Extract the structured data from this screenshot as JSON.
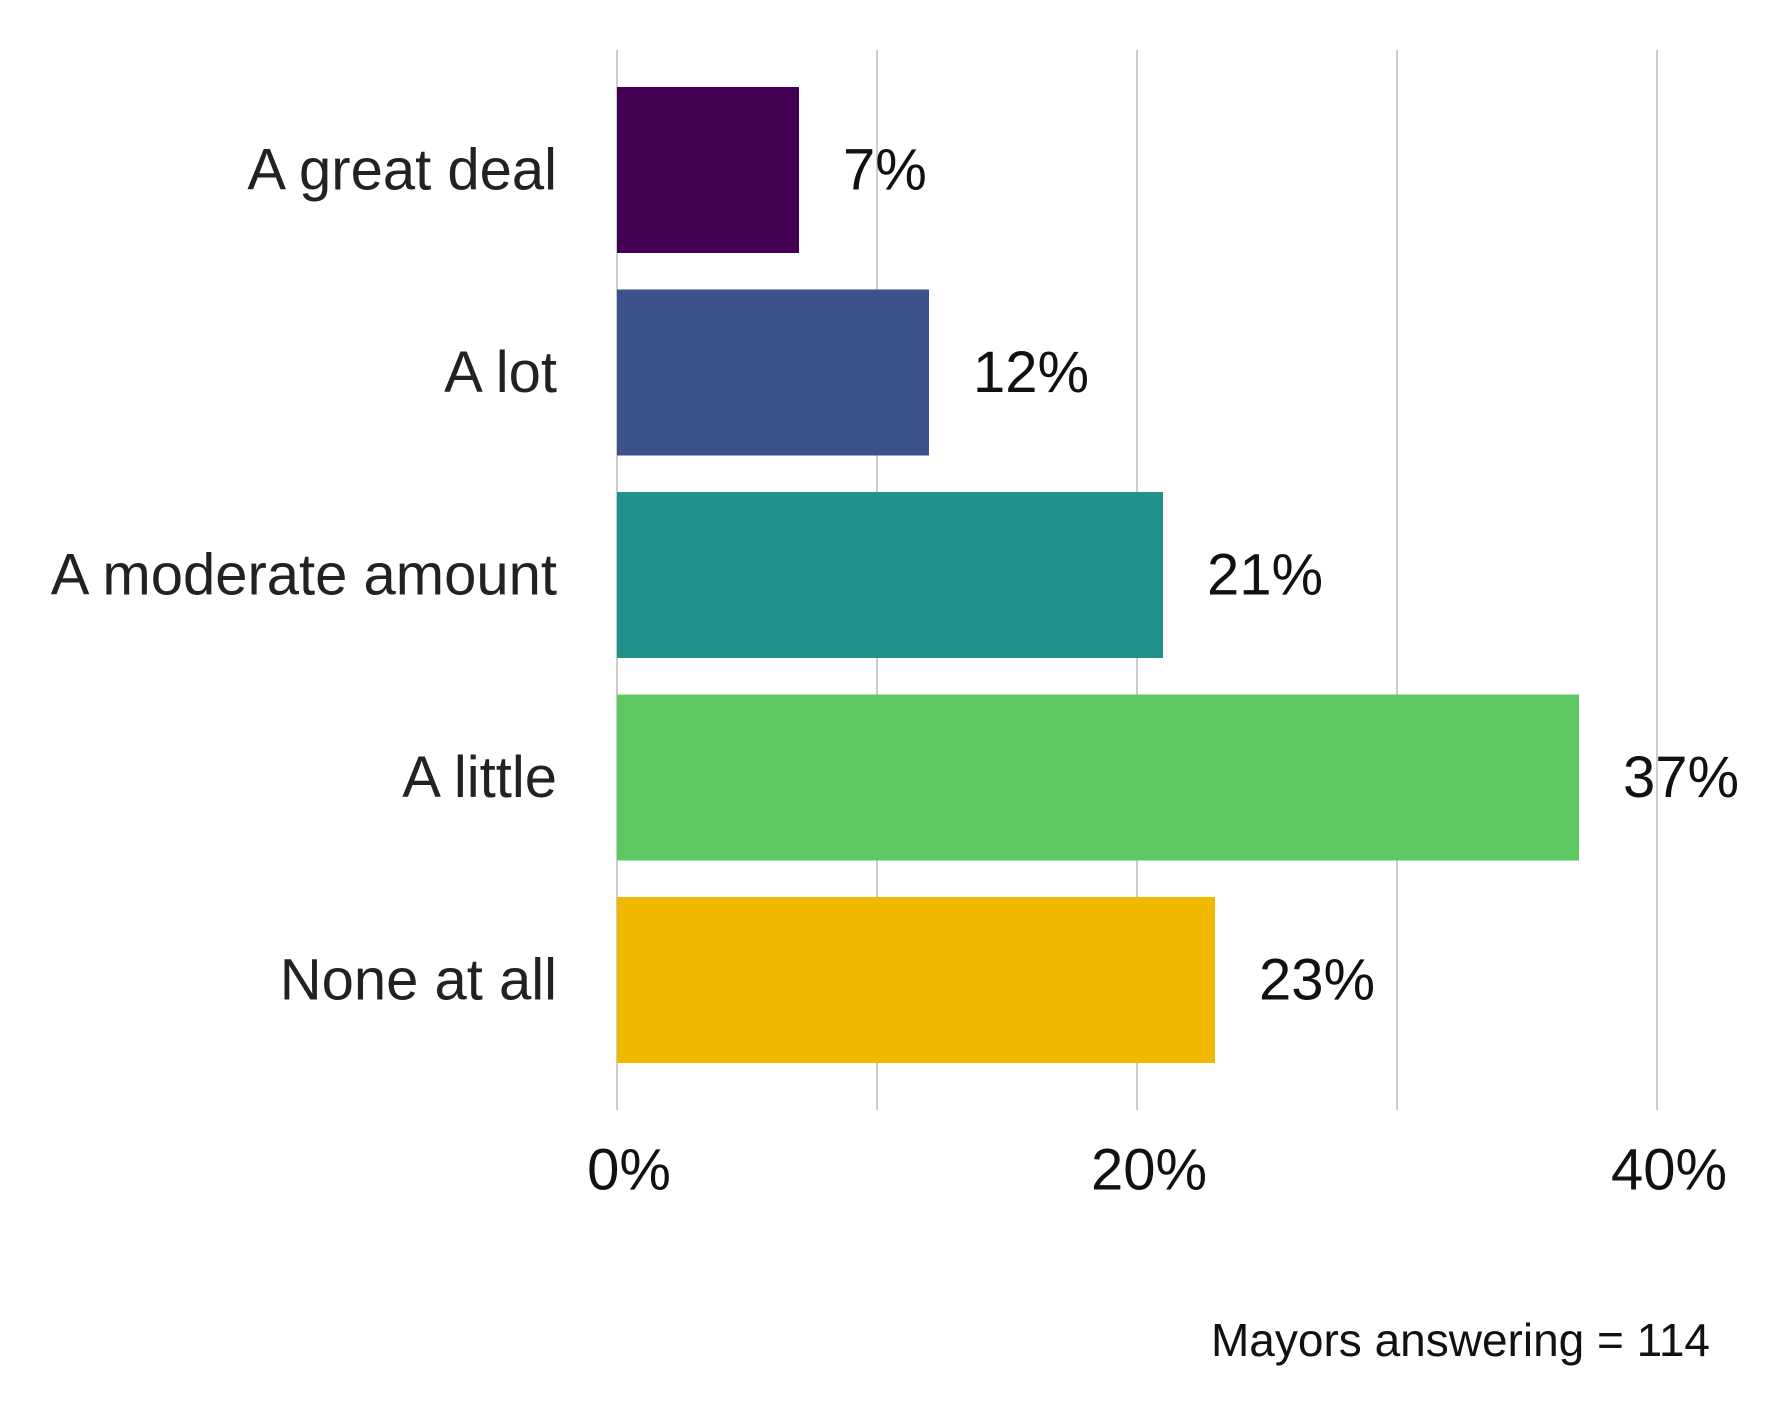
{
  "chart_data": {
    "type": "bar",
    "orientation": "horizontal",
    "categories": [
      "A great deal",
      "A lot",
      "A moderate amount",
      "A little",
      "None at all"
    ],
    "values": [
      7,
      12,
      21,
      37,
      23
    ],
    "value_labels": [
      "7%",
      "12%",
      "21%",
      "37%",
      "23%"
    ],
    "colors": [
      "#440154",
      "#3b528b",
      "#21918c",
      "#5ec962",
      "#f0b800"
    ],
    "x_ticks": [
      0,
      20,
      40
    ],
    "x_tick_labels": [
      "0%",
      "20%",
      "40%"
    ],
    "x_gridlines": [
      0,
      10,
      20,
      30,
      40
    ],
    "xlim": [
      0,
      40
    ],
    "title": "",
    "xlabel": "",
    "ylabel": "",
    "grid": true,
    "legend": "none"
  },
  "footnote": "Mayors answering = 114"
}
